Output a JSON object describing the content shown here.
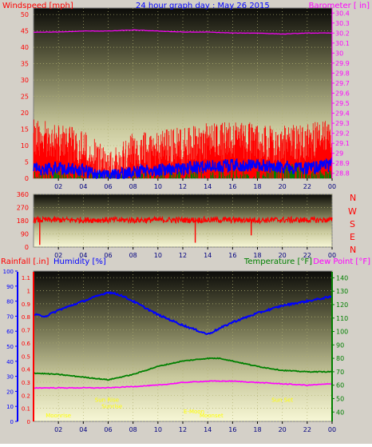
{
  "titles": {
    "windspeed": "Windspeed [mph]",
    "main": "24 hour graph day : May 26 2015",
    "barometer": "Barometer [ in]",
    "rainfall": "Rainfall [.in]",
    "humidity": "Humidity [%]",
    "temperature": "Temperature [°F]",
    "dewpoint": "Dew Point [°F]"
  },
  "compass_labels": [
    "N",
    "W",
    "S",
    "E",
    "N"
  ],
  "colors": {
    "frame": "#d4d0c8",
    "wind_gust": "#ff0000",
    "wind_avg": "#0000ff",
    "wind_green": "#008000",
    "barometer": "#ff00ff",
    "direction": "#ff0000",
    "humidity": "#0000ff",
    "temperature": "#008000",
    "dewpoint": "#ff00ff",
    "rain_axis": "#ff0000",
    "annotation": "#ffff00"
  },
  "chart_data": [
    {
      "type": "line",
      "name": "wind_barometer",
      "x_ticks": [
        "02",
        "04",
        "06",
        "08",
        "10",
        "12",
        "14",
        "16",
        "18",
        "20",
        "22",
        "00"
      ],
      "y_left_ticks": [
        "0",
        "5",
        "10",
        "15",
        "20",
        "25",
        "30",
        "35",
        "40",
        "45",
        "50"
      ],
      "y_left_range": [
        0,
        52
      ],
      "y_right_ticks": [
        "28.8",
        "28.9",
        "29",
        "29.1",
        "29.2",
        "29.3",
        "29.4",
        "29.5",
        "29.6",
        "29.7",
        "29.8",
        "29.9",
        "30",
        "30.1",
        "30.2",
        "30.3",
        "30.4"
      ],
      "y_right_range": [
        28.75,
        30.45
      ],
      "gust_profile": {
        "hours": [
          0,
          2,
          4,
          5,
          6,
          7,
          8,
          10,
          12,
          14,
          16,
          18,
          20,
          22,
          24
        ],
        "values": [
          12,
          11,
          9,
          6,
          2,
          6,
          8,
          9,
          10,
          11,
          12,
          11,
          10,
          11,
          12
        ]
      },
      "avg_profile": {
        "hours": [
          0,
          2,
          4,
          5,
          6,
          7,
          8,
          10,
          12,
          14,
          16,
          18,
          20,
          22,
          24
        ],
        "values": [
          3,
          3,
          2.5,
          1.2,
          0.5,
          1.5,
          2,
          2.5,
          3,
          3.5,
          4,
          4,
          3.5,
          3,
          4
        ]
      },
      "barometer_profile": {
        "hours": [
          0,
          2,
          4,
          6,
          8,
          10,
          12,
          14,
          16,
          18,
          20,
          22,
          24
        ],
        "values": [
          30.21,
          30.21,
          30.22,
          30.22,
          30.23,
          30.22,
          30.21,
          30.21,
          30.2,
          30.2,
          30.19,
          30.2,
          30.2
        ]
      }
    },
    {
      "type": "scatter",
      "name": "wind_direction",
      "x_ticks": [
        "02",
        "04",
        "06",
        "08",
        "10",
        "12",
        "14",
        "16",
        "18",
        "20",
        "22",
        "00"
      ],
      "y_ticks": [
        "360",
        "270",
        "180",
        "90",
        "0"
      ],
      "y_range": [
        0,
        360
      ],
      "direction_mean": 185,
      "direction_spread": 20,
      "dips": [
        {
          "hour": 0.5,
          "value": 15
        },
        {
          "hour": 13.0,
          "value": 30
        },
        {
          "hour": 17.5,
          "value": 80
        }
      ]
    },
    {
      "type": "line",
      "name": "humidity_temperature",
      "x_ticks": [
        "02",
        "04",
        "06",
        "08",
        "10",
        "12",
        "14",
        "16",
        "18",
        "20",
        "22",
        "00"
      ],
      "y_rain_ticks": [
        "0",
        "0.1",
        "0.2",
        "0.3",
        "0.4",
        "0.5",
        "0.6",
        "0.7",
        "0.8",
        "0.9",
        "1",
        "1.1"
      ],
      "y_rain_range": [
        0,
        1.15
      ],
      "y_humidity_ticks": [
        "0",
        "10",
        "20",
        "30",
        "40",
        "50",
        "60",
        "70",
        "80",
        "90",
        "100"
      ],
      "y_humidity_range": [
        0,
        100
      ],
      "y_temperature_ticks": [
        "40",
        "50",
        "60",
        "70",
        "80",
        "90",
        "100",
        "110",
        "120",
        "130",
        "140"
      ],
      "y_temperature_range": [
        33,
        145
      ],
      "humidity_profile": {
        "hours": [
          0,
          1,
          2,
          4,
          6,
          7,
          8,
          10,
          12,
          13,
          14,
          15,
          16,
          18,
          20,
          22,
          24
        ],
        "values": [
          71,
          70,
          74,
          80,
          86,
          84,
          80,
          71,
          64,
          61,
          58,
          62,
          66,
          72,
          77,
          80,
          83
        ]
      },
      "temperature_profile": {
        "hours": [
          0,
          2,
          4,
          6,
          8,
          10,
          12,
          14,
          15,
          16,
          18,
          20,
          22,
          24
        ],
        "values": [
          69,
          68,
          66,
          64,
          68,
          74,
          78,
          80,
          80,
          78,
          74,
          71,
          70,
          70
        ]
      },
      "dewpoint_profile": {
        "hours": [
          0,
          2,
          4,
          6,
          8,
          10,
          12,
          14,
          16,
          18,
          20,
          22,
          24
        ],
        "values": [
          58,
          58,
          58,
          58,
          59,
          60,
          62,
          63,
          63,
          62,
          61,
          60,
          61
        ]
      },
      "annotations": [
        {
          "text": "Sun Rise",
          "hour": 5.9,
          "value": 0.15
        },
        {
          "text": "Sunrise",
          "hour": 6.3,
          "value": 0.1
        },
        {
          "text": "Sun Set",
          "hour": 20.0,
          "value": 0.15
        },
        {
          "text": "Moonrise",
          "hour": 2.0,
          "value": 0.03
        },
        {
          "text": "E-Moon",
          "hour": 12.9,
          "value": 0.06
        },
        {
          "text": "Moonset",
          "hour": 14.3,
          "value": 0.03
        }
      ]
    }
  ]
}
